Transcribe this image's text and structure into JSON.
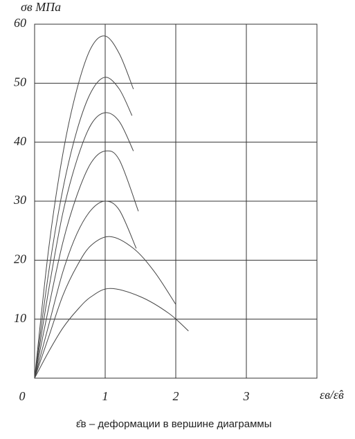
{
  "chart_data": {
    "type": "line",
    "y_label": "σв  МПа",
    "x_label": "εв/ε̂в",
    "caption": "ε̂в – деформации в вершине диаграммы",
    "xlim": [
      0,
      4
    ],
    "xticks": [
      0,
      1,
      2,
      3
    ],
    "ylim": [
      0,
      60
    ],
    "yticks": [
      10,
      20,
      30,
      40,
      50,
      60
    ],
    "grid": true,
    "series": [
      {
        "color": "#444444",
        "x": [
          0,
          0.2,
          0.4,
          0.6,
          0.8,
          1.0,
          1.2,
          1.4
        ],
        "values": [
          0,
          22,
          38,
          49,
          56,
          58,
          55,
          49
        ]
      },
      {
        "color": "#444444",
        "x": [
          0,
          0.2,
          0.4,
          0.6,
          0.8,
          1.0,
          1.2,
          1.38
        ],
        "values": [
          0,
          18,
          32,
          42,
          48.5,
          51,
          49,
          44.5
        ]
      },
      {
        "color": "#444444",
        "x": [
          0,
          0.2,
          0.4,
          0.6,
          0.8,
          1.0,
          1.2,
          1.4
        ],
        "values": [
          0,
          15,
          28,
          37,
          43,
          45,
          43.5,
          38.5
        ]
      },
      {
        "color": "#444444",
        "x": [
          0,
          0.2,
          0.4,
          0.6,
          0.8,
          1.0,
          1.2,
          1.47
        ],
        "values": [
          0,
          12,
          23,
          31,
          36.5,
          38.5,
          37,
          28.3
        ]
      },
      {
        "color": "#444444",
        "x": [
          0,
          0.2,
          0.4,
          0.6,
          0.8,
          1.0,
          1.2,
          1.44
        ],
        "values": [
          0,
          9,
          18,
          24.5,
          28.5,
          30,
          28.5,
          22
        ]
      },
      {
        "color": "#444444",
        "x": [
          0,
          0.2,
          0.4,
          0.6,
          0.8,
          1.07,
          1.4,
          1.7,
          2.0
        ],
        "values": [
          0,
          7,
          14,
          19,
          22.5,
          24,
          22,
          18,
          12.5
        ]
      },
      {
        "color": "#444444",
        "x": [
          0,
          0.2,
          0.4,
          0.6,
          0.8,
          1.07,
          1.5,
          1.9,
          2.18
        ],
        "values": [
          0,
          4.5,
          8.5,
          11.5,
          13.8,
          15.2,
          13.8,
          11,
          8
        ]
      }
    ]
  }
}
